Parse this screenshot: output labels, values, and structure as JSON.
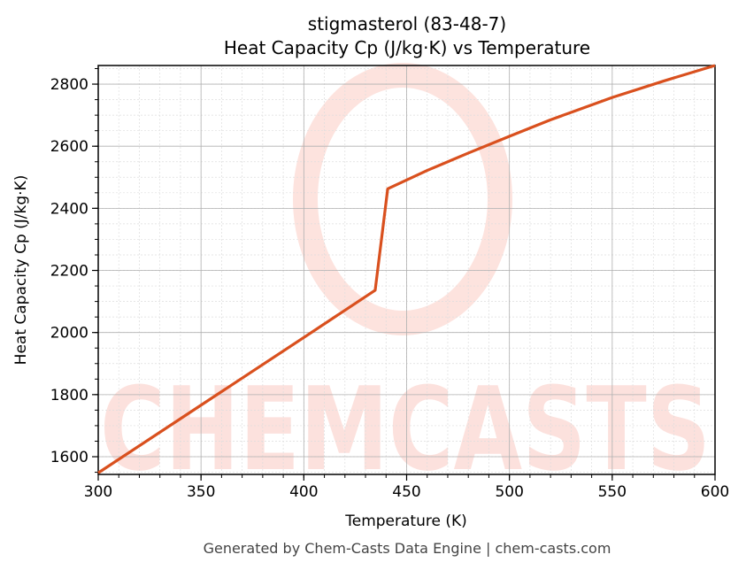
{
  "chart_data": {
    "type": "line",
    "title": "stigmasterol (83-48-7)",
    "subtitle": "Heat Capacity Cp (J/kg·K) vs Temperature",
    "xlabel": "Temperature (K)",
    "ylabel": "Heat Capacity Cp (J/kg·K)",
    "xlim": [
      300,
      600
    ],
    "ylim": [
      1543,
      2860
    ],
    "xticks": [
      300,
      350,
      400,
      450,
      500,
      550,
      600
    ],
    "yticks": [
      1600,
      1800,
      2000,
      2200,
      2400,
      2600,
      2800
    ],
    "grid": true,
    "line_color": "#d9501e",
    "series": [
      {
        "x": [
          300,
          350,
          400,
          434.7,
          440.8,
          460,
          480,
          500,
          520,
          550,
          575,
          600
        ],
        "y": [
          1548,
          1766,
          1984,
          2136,
          2463,
          2522,
          2578,
          2632,
          2685,
          2757,
          2810,
          2860
        ]
      }
    ]
  },
  "watermark": "CHEMCASTS",
  "footer": "Generated by Chem-Casts Data Engine | chem-casts.com"
}
